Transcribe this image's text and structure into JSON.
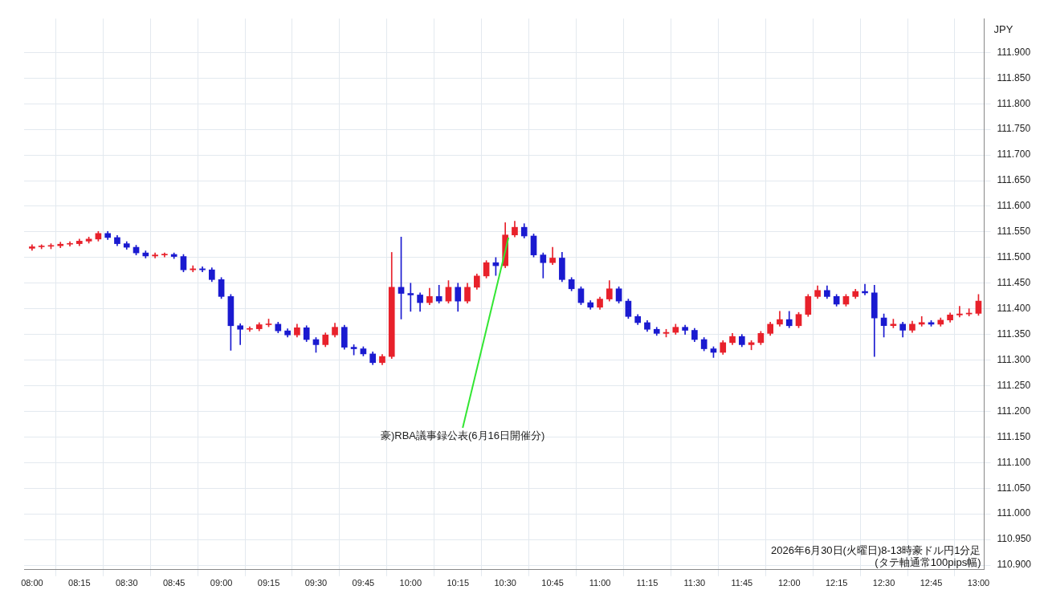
{
  "chart_data": {
    "type": "candlestick",
    "ylabel": "JPY",
    "x": [
      8,
      8.05,
      8.1,
      8.15,
      8.2,
      8.25,
      8.3,
      8.35,
      8.4,
      8.45,
      8.5,
      8.55,
      8.6,
      8.65,
      8.7,
      8.75,
      8.8,
      8.85,
      8.9,
      8.95,
      9,
      9.05,
      9.1,
      9.15,
      9.2,
      9.25,
      9.3,
      9.35,
      9.4,
      9.45,
      9.5,
      9.55,
      9.6,
      9.65,
      9.7,
      9.75,
      9.8,
      9.85,
      9.9,
      9.95,
      10,
      10.05,
      10.1,
      10.15,
      10.2,
      10.25,
      10.3,
      10.35,
      10.4,
      10.45,
      10.5,
      10.55,
      10.6,
      10.65,
      10.7,
      10.75,
      10.8,
      10.85,
      10.9,
      10.95,
      11,
      11.05,
      11.1,
      11.15,
      11.2,
      11.25,
      11.3,
      11.35,
      11.4,
      11.45,
      11.5,
      11.55,
      11.6,
      11.65,
      11.7,
      11.75,
      11.8,
      11.85,
      11.9,
      11.95,
      12,
      12.05,
      12.1,
      12.15,
      12.2,
      12.25,
      12.3,
      12.35,
      12.4,
      12.45,
      12.5,
      12.55,
      12.6,
      12.65,
      12.7,
      12.75,
      12.8,
      12.85,
      12.9,
      12.95,
      13
    ],
    "ohlc": [
      [
        111.518,
        111.525,
        111.514,
        111.521
      ],
      [
        111.521,
        111.525,
        111.517,
        111.522
      ],
      [
        111.522,
        111.527,
        111.517,
        111.523
      ],
      [
        111.523,
        111.53,
        111.519,
        111.526
      ],
      [
        111.526,
        111.531,
        111.522,
        111.527
      ],
      [
        111.527,
        111.536,
        111.523,
        111.532
      ],
      [
        111.532,
        111.54,
        111.528,
        111.536
      ],
      [
        111.536,
        111.551,
        111.532,
        111.547
      ],
      [
        111.547,
        111.551,
        111.535,
        111.539
      ],
      [
        111.539,
        111.543,
        111.523,
        111.527
      ],
      [
        111.527,
        111.531,
        111.516,
        111.52
      ],
      [
        111.52,
        111.524,
        111.505,
        111.509
      ],
      [
        111.509,
        111.513,
        111.499,
        111.503
      ],
      [
        111.503,
        111.509,
        111.499,
        111.505
      ],
      [
        111.505,
        111.509,
        111.501,
        111.506
      ],
      [
        111.506,
        111.509,
        111.498,
        111.502
      ],
      [
        111.502,
        111.506,
        111.472,
        111.476
      ],
      [
        111.476,
        111.484,
        111.472,
        111.478
      ],
      [
        111.478,
        111.482,
        111.472,
        111.476
      ],
      [
        111.476,
        111.48,
        111.453,
        111.457
      ],
      [
        111.457,
        111.461,
        111.42,
        111.424
      ],
      [
        111.424,
        111.428,
        111.319,
        111.367
      ],
      [
        111.367,
        111.371,
        111.33,
        111.36
      ],
      [
        111.36,
        111.365,
        111.356,
        111.361
      ],
      [
        111.361,
        111.373,
        111.357,
        111.369
      ],
      [
        111.369,
        111.38,
        111.365,
        111.37
      ],
      [
        111.37,
        111.374,
        111.353,
        111.357
      ],
      [
        111.357,
        111.361,
        111.345,
        111.349
      ],
      [
        111.349,
        111.37,
        111.345,
        111.363
      ],
      [
        111.363,
        111.367,
        111.336,
        111.34
      ],
      [
        111.34,
        111.344,
        111.315,
        111.33
      ],
      [
        111.33,
        111.353,
        111.326,
        111.349
      ],
      [
        111.349,
        111.372,
        111.345,
        111.364
      ],
      [
        111.364,
        111.368,
        111.321,
        111.325
      ],
      [
        111.325,
        111.33,
        111.31,
        111.322
      ],
      [
        111.322,
        111.326,
        111.308,
        111.312
      ],
      [
        111.312,
        111.316,
        111.291,
        111.295
      ],
      [
        111.295,
        111.311,
        111.291,
        111.307
      ],
      [
        111.307,
        111.51,
        111.303,
        111.442
      ],
      [
        111.442,
        111.54,
        111.38,
        111.43
      ],
      [
        111.43,
        111.45,
        111.395,
        111.427
      ],
      [
        111.427,
        111.431,
        111.395,
        111.412
      ],
      [
        111.412,
        111.44,
        111.408,
        111.424
      ],
      [
        111.424,
        111.446,
        111.411,
        111.415
      ],
      [
        111.415,
        111.455,
        111.411,
        111.442
      ],
      [
        111.442,
        111.45,
        111.395,
        111.415
      ],
      [
        111.415,
        111.45,
        111.411,
        111.442
      ],
      [
        111.442,
        111.468,
        111.438,
        111.464
      ],
      [
        111.464,
        111.494,
        111.46,
        111.49
      ],
      [
        111.49,
        111.5,
        111.465,
        111.484
      ],
      [
        111.484,
        111.568,
        111.48,
        111.544
      ],
      [
        111.544,
        111.571,
        111.54,
        111.559
      ],
      [
        111.559,
        111.566,
        111.538,
        111.542
      ],
      [
        111.542,
        111.546,
        111.501,
        111.505
      ],
      [
        111.505,
        111.509,
        111.46,
        111.49
      ],
      [
        111.49,
        111.52,
        111.486,
        111.499
      ],
      [
        111.499,
        111.51,
        111.453,
        111.457
      ],
      [
        111.457,
        111.461,
        111.435,
        111.439
      ],
      [
        111.439,
        111.443,
        111.408,
        111.412
      ],
      [
        111.412,
        111.416,
        111.399,
        111.403
      ],
      [
        111.403,
        111.423,
        111.399,
        111.419
      ],
      [
        111.419,
        111.455,
        111.415,
        111.439
      ],
      [
        111.439,
        111.443,
        111.411,
        111.415
      ],
      [
        111.415,
        111.419,
        111.381,
        111.385
      ],
      [
        111.385,
        111.389,
        111.369,
        111.373
      ],
      [
        111.373,
        111.377,
        111.356,
        111.36
      ],
      [
        111.36,
        111.364,
        111.348,
        111.352
      ],
      [
        111.352,
        111.36,
        111.345,
        111.354
      ],
      [
        111.354,
        111.37,
        111.35,
        111.364
      ],
      [
        111.364,
        111.368,
        111.35,
        111.358
      ],
      [
        111.358,
        111.362,
        111.336,
        111.34
      ],
      [
        111.34,
        111.344,
        111.318,
        111.322
      ],
      [
        111.322,
        111.326,
        111.305,
        111.315
      ],
      [
        111.315,
        111.338,
        111.311,
        111.334
      ],
      [
        111.334,
        111.352,
        111.33,
        111.346
      ],
      [
        111.346,
        111.35,
        111.326,
        111.33
      ],
      [
        111.33,
        111.338,
        111.32,
        111.334
      ],
      [
        111.334,
        111.356,
        111.33,
        111.352
      ],
      [
        111.352,
        111.374,
        111.348,
        111.37
      ],
      [
        111.37,
        111.395,
        111.366,
        111.379
      ],
      [
        111.379,
        111.395,
        111.363,
        111.367
      ],
      [
        111.367,
        111.393,
        111.363,
        111.389
      ],
      [
        111.389,
        111.428,
        111.385,
        111.424
      ],
      [
        111.424,
        111.445,
        111.42,
        111.436
      ],
      [
        111.436,
        111.445,
        111.42,
        111.424
      ],
      [
        111.424,
        111.428,
        111.405,
        111.409
      ],
      [
        111.409,
        111.428,
        111.405,
        111.424
      ],
      [
        111.424,
        111.438,
        111.42,
        111.434
      ],
      [
        111.434,
        111.448,
        111.427,
        111.431
      ],
      [
        111.431,
        111.446,
        111.307,
        111.382
      ],
      [
        111.382,
        111.39,
        111.345,
        111.367
      ],
      [
        111.367,
        111.38,
        111.363,
        111.37
      ],
      [
        111.37,
        111.374,
        111.345,
        111.358
      ],
      [
        111.358,
        111.376,
        111.354,
        111.37
      ],
      [
        111.37,
        111.385,
        111.366,
        111.373
      ],
      [
        111.373,
        111.377,
        111.366,
        111.37
      ],
      [
        111.37,
        111.382,
        111.366,
        111.378
      ],
      [
        111.378,
        111.392,
        111.374,
        111.388
      ],
      [
        111.388,
        111.405,
        111.384,
        111.39
      ],
      [
        111.39,
        111.4,
        111.386,
        111.391
      ],
      [
        111.391,
        111.428,
        111.387,
        111.415
      ]
    ],
    "colors": [
      "#e8212b",
      "#e8212b",
      "#e8212b",
      "#e8212b",
      "#e8212b",
      "#e8212b",
      "#e8212b",
      "#e8212b",
      "#1a1ad0",
      "#1a1ad0",
      "#1a1ad0",
      "#1a1ad0",
      "#1a1ad0",
      "#e8212b",
      "#e8212b",
      "#1a1ad0",
      "#1a1ad0",
      "#e8212b",
      "#1a1ad0",
      "#1a1ad0",
      "#1a1ad0",
      "#1a1ad0",
      "#1a1ad0",
      "#e8212b",
      "#e8212b",
      "#e8212b",
      "#1a1ad0",
      "#1a1ad0",
      "#e8212b",
      "#1a1ad0",
      "#1a1ad0",
      "#e8212b",
      "#e8212b",
      "#1a1ad0",
      "#1a1ad0",
      "#1a1ad0",
      "#1a1ad0",
      "#e8212b",
      "#e8212b",
      "#1a1ad0",
      "#1a1ad0",
      "#1a1ad0",
      "#e8212b",
      "#1a1ad0",
      "#e8212b",
      "#1a1ad0",
      "#e8212b",
      "#e8212b",
      "#e8212b",
      "#1a1ad0",
      "#e8212b",
      "#e8212b",
      "#1a1ad0",
      "#1a1ad0",
      "#1a1ad0",
      "#e8212b",
      "#1a1ad0",
      "#1a1ad0",
      "#1a1ad0",
      "#1a1ad0",
      "#e8212b",
      "#e8212b",
      "#1a1ad0",
      "#1a1ad0",
      "#1a1ad0",
      "#1a1ad0",
      "#1a1ad0",
      "#e8212b",
      "#e8212b",
      "#1a1ad0",
      "#1a1ad0",
      "#1a1ad0",
      "#1a1ad0",
      "#e8212b",
      "#e8212b",
      "#1a1ad0",
      "#e8212b",
      "#e8212b",
      "#e8212b",
      "#e8212b",
      "#1a1ad0",
      "#e8212b",
      "#e8212b",
      "#e8212b",
      "#1a1ad0",
      "#1a1ad0",
      "#e8212b",
      "#e8212b",
      "#1a1ad0",
      "#1a1ad0",
      "#1a1ad0",
      "#e8212b",
      "#1a1ad0",
      "#e8212b",
      "#e8212b",
      "#1a1ad0",
      "#e8212b",
      "#e8212b",
      "#e8212b",
      "#e8212b",
      "#e8212b"
    ],
    "xlim": [
      7.958,
      13.03
    ],
    "xticks": [
      {
        "value": 8,
        "label": "08:00"
      },
      {
        "value": 8.25,
        "label": "08:15"
      },
      {
        "value": 8.5,
        "label": "08:30"
      },
      {
        "value": 8.75,
        "label": "08:45"
      },
      {
        "value": 9,
        "label": "09:00"
      },
      {
        "value": 9.25,
        "label": "09:15"
      },
      {
        "value": 9.5,
        "label": "09:30"
      },
      {
        "value": 9.75,
        "label": "09:45"
      },
      {
        "value": 10,
        "label": "10:00"
      },
      {
        "value": 10.25,
        "label": "10:15"
      },
      {
        "value": 10.5,
        "label": "10:30"
      },
      {
        "value": 10.75,
        "label": "10:45"
      },
      {
        "value": 11,
        "label": "11:00"
      },
      {
        "value": 11.25,
        "label": "11:15"
      },
      {
        "value": 11.5,
        "label": "11:30"
      },
      {
        "value": 11.75,
        "label": "11:45"
      },
      {
        "value": 12,
        "label": "12:00"
      },
      {
        "value": 12.25,
        "label": "12:15"
      },
      {
        "value": 12.5,
        "label": "12:30"
      },
      {
        "value": 12.75,
        "label": "12:45"
      },
      {
        "value": 13,
        "label": "13:00"
      }
    ],
    "ylim": [
      110.891,
      111.966
    ],
    "yticks": [
      {
        "value": 110.9,
        "label": "110.900"
      },
      {
        "value": 110.95,
        "label": "110.950"
      },
      {
        "value": 111,
        "label": "111.000"
      },
      {
        "value": 111.05,
        "label": "111.050"
      },
      {
        "value": 111.1,
        "label": "111.100"
      },
      {
        "value": 111.15,
        "label": "111.150"
      },
      {
        "value": 111.2,
        "label": "111.200"
      },
      {
        "value": 111.25,
        "label": "111.250"
      },
      {
        "value": 111.3,
        "label": "111.300"
      },
      {
        "value": 111.35,
        "label": "111.350"
      },
      {
        "value": 111.4,
        "label": "111.400"
      },
      {
        "value": 111.45,
        "label": "111.450"
      },
      {
        "value": 111.5,
        "label": "111.500"
      },
      {
        "value": 111.55,
        "label": "111.550"
      },
      {
        "value": 111.6,
        "label": "111.600"
      },
      {
        "value": 111.65,
        "label": "111.650"
      },
      {
        "value": 111.7,
        "label": "111.700"
      },
      {
        "value": 111.75,
        "label": "111.750"
      },
      {
        "value": 111.8,
        "label": "111.800"
      },
      {
        "value": 111.85,
        "label": "111.850"
      },
      {
        "value": 111.9,
        "label": "111.900"
      }
    ],
    "grid": true,
    "legend": false,
    "annotations": [
      {
        "text": "豪)RBA議事録公表(6月16日開催分)",
        "x": 10.517,
        "y": 111.539
      },
      "2026年6月30日(火曜日)8-13時豪ドル円1分足",
      "(タテ軸通常100pips幅)"
    ]
  }
}
